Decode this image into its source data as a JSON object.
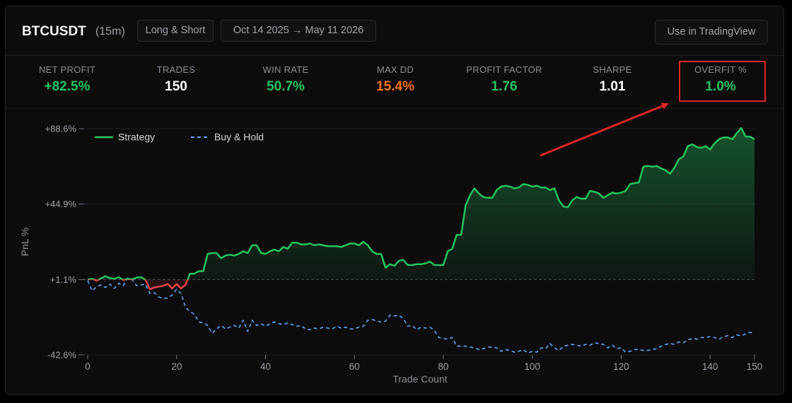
{
  "header": {
    "symbol": "BTCUSDT",
    "timeframe": "(15m)",
    "mode": "Long & Short",
    "date_range": "Oct 14 2025 → May 11 2026",
    "tradingview_button": "Use in TradingView"
  },
  "stats": [
    {
      "label": "NET PROFIT",
      "value": "+82.5%",
      "color": "#22c55e"
    },
    {
      "label": "TRADES",
      "value": "150",
      "color": "#ffffff"
    },
    {
      "label": "WIN RATE",
      "value": "50.7%",
      "color": "#22c55e"
    },
    {
      "label": "MAX DD",
      "value": "15.4%",
      "color": "#f97316"
    },
    {
      "label": "PROFIT FACTOR",
      "value": "1.76",
      "color": "#22c55e"
    },
    {
      "label": "SHARPE",
      "value": "1.01",
      "color": "#ffffff"
    },
    {
      "label": "OVERFIT %",
      "value": "1.0%",
      "color": "#22c55e"
    }
  ],
  "chart_data": {
    "type": "line",
    "xlabel": "Trade Count",
    "ylabel": "PnL %",
    "xlim": [
      0,
      152
    ],
    "ylim": [
      -43.5,
      89.5
    ],
    "xticks": [
      0,
      20,
      40,
      60,
      80,
      100,
      120,
      140,
      150
    ],
    "yticks": [
      {
        "value": 88.6,
        "label": "+88.6%"
      },
      {
        "value": 44.9,
        "label": "+44.9%"
      },
      {
        "value": 1.1,
        "label": "+1.1%"
      },
      {
        "value": -42.6,
        "label": "-42.6%"
      }
    ],
    "legend_position": "top-left",
    "baseline": 1.1,
    "series": [
      {
        "name": "Strategy",
        "color": "#22c55e",
        "below_baseline_color": "#ef4444",
        "style": "solid",
        "points": [
          [
            0,
            1.1
          ],
          [
            1,
            1.5
          ],
          [
            2,
            0.5
          ],
          [
            3,
            1.8
          ],
          [
            4,
            3.0
          ],
          [
            5,
            2.0
          ],
          [
            6,
            1.5
          ],
          [
            7,
            2.5
          ],
          [
            8,
            0.8
          ],
          [
            9,
            1.5
          ],
          [
            10,
            1.2
          ],
          [
            11,
            2.2
          ],
          [
            12,
            2.5
          ],
          [
            13,
            1.0
          ],
          [
            14,
            -4.5
          ],
          [
            15,
            -3.5
          ],
          [
            16,
            -3.0
          ],
          [
            17,
            -2.5
          ],
          [
            18,
            -1.5
          ],
          [
            19,
            -4.0
          ],
          [
            20,
            -1.5
          ],
          [
            21,
            -4.0
          ],
          [
            22,
            -2.0
          ],
          [
            23,
            4.5
          ],
          [
            24,
            4.5
          ],
          [
            25,
            6.0
          ],
          [
            26,
            6.0
          ],
          [
            27,
            16.0
          ],
          [
            28,
            16.5
          ],
          [
            29,
            16.5
          ],
          [
            30,
            13.5
          ],
          [
            31,
            15.0
          ],
          [
            32,
            15.5
          ],
          [
            33,
            15.0
          ],
          [
            34,
            16.0
          ],
          [
            35,
            17.5
          ],
          [
            36,
            16.5
          ],
          [
            37,
            21.0
          ],
          [
            38,
            21.0
          ],
          [
            39,
            16.5
          ],
          [
            40,
            16.0
          ],
          [
            41,
            17.5
          ],
          [
            42,
            18.5
          ],
          [
            43,
            17.5
          ],
          [
            44,
            20.0
          ],
          [
            45,
            19.0
          ],
          [
            46,
            22.5
          ],
          [
            47,
            22.5
          ],
          [
            48,
            21.5
          ],
          [
            49,
            21.5
          ],
          [
            50,
            22.0
          ],
          [
            51,
            21.0
          ],
          [
            52,
            21.5
          ],
          [
            53,
            21.0
          ],
          [
            54,
            20.5
          ],
          [
            55,
            20.5
          ],
          [
            56,
            20.5
          ],
          [
            57,
            20.0
          ],
          [
            58,
            21.0
          ],
          [
            59,
            22.0
          ],
          [
            60,
            22.0
          ],
          [
            61,
            21.0
          ],
          [
            62,
            23.0
          ],
          [
            63,
            21.0
          ],
          [
            64,
            17.5
          ],
          [
            65,
            16.0
          ],
          [
            66,
            16.0
          ],
          [
            67,
            8.0
          ],
          [
            68,
            10.0
          ],
          [
            69,
            9.0
          ],
          [
            70,
            12.0
          ],
          [
            71,
            12.5
          ],
          [
            72,
            9.5
          ],
          [
            73,
            9.5
          ],
          [
            74,
            10.0
          ],
          [
            75,
            10.0
          ],
          [
            76,
            10.5
          ],
          [
            77,
            11.5
          ],
          [
            78,
            9.5
          ],
          [
            79,
            9.5
          ],
          [
            80,
            9.5
          ],
          [
            81,
            17.5
          ],
          [
            82,
            19.0
          ],
          [
            83,
            27.0
          ],
          [
            84,
            27.0
          ],
          [
            85,
            44.0
          ],
          [
            86,
            50.0
          ],
          [
            87,
            54.0
          ],
          [
            88,
            51.0
          ],
          [
            89,
            49.0
          ],
          [
            90,
            48.5
          ],
          [
            91,
            48.5
          ],
          [
            92,
            53.0
          ],
          [
            93,
            55.0
          ],
          [
            94,
            55.5
          ],
          [
            95,
            55.0
          ],
          [
            96,
            54.0
          ],
          [
            97,
            54.5
          ],
          [
            98,
            56.5
          ],
          [
            99,
            56.0
          ],
          [
            100,
            55.0
          ],
          [
            101,
            55.5
          ],
          [
            102,
            54.5
          ],
          [
            103,
            54.5
          ],
          [
            104,
            53.0
          ],
          [
            105,
            54.0
          ],
          [
            106,
            47.0
          ],
          [
            107,
            43.5
          ],
          [
            108,
            43.0
          ],
          [
            109,
            47.0
          ],
          [
            110,
            49.0
          ],
          [
            111,
            48.0
          ],
          [
            112,
            48.0
          ],
          [
            113,
            52.5
          ],
          [
            114,
            52.0
          ],
          [
            115,
            51.0
          ],
          [
            116,
            48.5
          ],
          [
            117,
            50.0
          ],
          [
            118,
            51.5
          ],
          [
            119,
            51.0
          ],
          [
            120,
            51.5
          ],
          [
            121,
            52.5
          ],
          [
            122,
            56.5
          ],
          [
            123,
            57.0
          ],
          [
            124,
            57.5
          ],
          [
            125,
            66.5
          ],
          [
            126,
            67.0
          ],
          [
            127,
            66.5
          ],
          [
            128,
            67.0
          ],
          [
            129,
            65.5
          ],
          [
            130,
            64.5
          ],
          [
            131,
            62.5
          ],
          [
            132,
            66.0
          ],
          [
            133,
            71.0
          ],
          [
            134,
            72.5
          ],
          [
            135,
            78.5
          ],
          [
            136,
            79.5
          ],
          [
            137,
            78.0
          ],
          [
            138,
            77.5
          ],
          [
            139,
            78.5
          ],
          [
            140,
            76.5
          ],
          [
            141,
            80.0
          ],
          [
            142,
            82.5
          ],
          [
            143,
            83.5
          ],
          [
            144,
            83.5
          ],
          [
            145,
            82.5
          ],
          [
            146,
            86.0
          ],
          [
            147,
            89.0
          ],
          [
            148,
            84.0
          ],
          [
            149,
            84.0
          ],
          [
            150,
            82.5
          ]
        ]
      },
      {
        "name": "Buy & Hold",
        "color": "#60a5fa",
        "style": "dashed",
        "points": [
          [
            0,
            0.5
          ],
          [
            1,
            -5.5
          ],
          [
            2,
            -3.0
          ],
          [
            3,
            -2.0
          ],
          [
            4,
            -3.5
          ],
          [
            5,
            -1.5
          ],
          [
            6,
            -4.0
          ],
          [
            7,
            -1.0
          ],
          [
            8,
            -2.5
          ],
          [
            9,
            2.0
          ],
          [
            10,
            1.0
          ],
          [
            11,
            -2.5
          ],
          [
            12,
            -2.0
          ],
          [
            13,
            -1.5
          ],
          [
            14,
            -7.0
          ],
          [
            15,
            -6.5
          ],
          [
            16,
            -9.0
          ],
          [
            17,
            -10.0
          ],
          [
            18,
            -9.5
          ],
          [
            19,
            -8.0
          ],
          [
            20,
            -4.5
          ],
          [
            21,
            -7.0
          ],
          [
            22,
            -15.0
          ],
          [
            23,
            -17.5
          ],
          [
            24,
            -19.0
          ],
          [
            25,
            -23.5
          ],
          [
            26,
            -24.0
          ],
          [
            27,
            -25.5
          ],
          [
            28,
            -30.0
          ],
          [
            29,
            -27.5
          ],
          [
            30,
            -25.5
          ],
          [
            31,
            -27.5
          ],
          [
            32,
            -26.5
          ],
          [
            33,
            -25.5
          ],
          [
            34,
            -27.0
          ],
          [
            35,
            -22.5
          ],
          [
            36,
            -29.0
          ],
          [
            37,
            -22.5
          ],
          [
            38,
            -25.5
          ],
          [
            39,
            -24.5
          ],
          [
            40,
            -26.0
          ],
          [
            41,
            -24.5
          ],
          [
            42,
            -23.5
          ],
          [
            43,
            -24.5
          ],
          [
            44,
            -25.0
          ],
          [
            45,
            -24.0
          ],
          [
            46,
            -25.0
          ],
          [
            47,
            -26.0
          ],
          [
            48,
            -25.5
          ],
          [
            49,
            -27.5
          ],
          [
            50,
            -28.0
          ],
          [
            51,
            -27.0
          ],
          [
            52,
            -27.5
          ],
          [
            53,
            -26.5
          ],
          [
            54,
            -27.0
          ],
          [
            55,
            -27.5
          ],
          [
            56,
            -26.0
          ],
          [
            57,
            -27.0
          ],
          [
            58,
            -26.5
          ],
          [
            59,
            -27.5
          ],
          [
            60,
            -27.5
          ],
          [
            61,
            -26.5
          ],
          [
            62,
            -26.0
          ],
          [
            63,
            -22.5
          ],
          [
            64,
            -22.0
          ],
          [
            65,
            -23.0
          ],
          [
            66,
            -23.5
          ],
          [
            67,
            -23.0
          ],
          [
            68,
            -19.5
          ],
          [
            69,
            -20.0
          ],
          [
            70,
            -19.5
          ],
          [
            71,
            -21.5
          ],
          [
            72,
            -26.0
          ],
          [
            73,
            -25.5
          ],
          [
            74,
            -28.0
          ],
          [
            75,
            -26.5
          ],
          [
            76,
            -27.0
          ],
          [
            77,
            -26.5
          ],
          [
            78,
            -28.5
          ],
          [
            79,
            -32.5
          ],
          [
            80,
            -33.0
          ],
          [
            81,
            -33.5
          ],
          [
            82,
            -32.5
          ],
          [
            83,
            -37.5
          ],
          [
            84,
            -37.5
          ],
          [
            85,
            -37.5
          ],
          [
            86,
            -38.0
          ],
          [
            87,
            -38.5
          ],
          [
            88,
            -39.5
          ],
          [
            89,
            -39.0
          ],
          [
            90,
            -38.0
          ],
          [
            91,
            -38.0
          ],
          [
            92,
            -38.5
          ],
          [
            93,
            -40.5
          ],
          [
            94,
            -39.5
          ],
          [
            95,
            -40.0
          ],
          [
            96,
            -41.0
          ],
          [
            97,
            -40.5
          ],
          [
            98,
            -39.5
          ],
          [
            99,
            -41.5
          ],
          [
            100,
            -40.5
          ],
          [
            101,
            -41.0
          ],
          [
            102,
            -38.5
          ],
          [
            103,
            -39.0
          ],
          [
            104,
            -36.0
          ],
          [
            105,
            -38.5
          ],
          [
            106,
            -40.0
          ],
          [
            107,
            -37.5
          ],
          [
            108,
            -37.0
          ],
          [
            109,
            -36.5
          ],
          [
            110,
            -37.0
          ],
          [
            111,
            -37.5
          ],
          [
            112,
            -36.5
          ],
          [
            113,
            -37.0
          ],
          [
            114,
            -35.5
          ],
          [
            115,
            -36.0
          ],
          [
            116,
            -36.5
          ],
          [
            117,
            -38.5
          ],
          [
            118,
            -37.0
          ],
          [
            119,
            -39.0
          ],
          [
            120,
            -38.5
          ],
          [
            121,
            -41.0
          ],
          [
            122,
            -40.5
          ],
          [
            123,
            -39.5
          ],
          [
            124,
            -39.5
          ],
          [
            125,
            -40.0
          ],
          [
            126,
            -40.0
          ],
          [
            127,
            -39.5
          ],
          [
            128,
            -39.0
          ],
          [
            129,
            -37.5
          ],
          [
            130,
            -36.5
          ],
          [
            131,
            -36.0
          ],
          [
            132,
            -36.5
          ],
          [
            133,
            -35.0
          ],
          [
            134,
            -35.5
          ],
          [
            135,
            -34.0
          ],
          [
            136,
            -33.0
          ],
          [
            137,
            -33.5
          ],
          [
            138,
            -32.5
          ],
          [
            139,
            -32.5
          ],
          [
            140,
            -32.0
          ],
          [
            141,
            -32.5
          ],
          [
            142,
            -33.5
          ],
          [
            143,
            -32.0
          ],
          [
            144,
            -31.5
          ],
          [
            145,
            -32.5
          ],
          [
            146,
            -31.0
          ],
          [
            147,
            -31.5
          ],
          [
            148,
            -30.5
          ],
          [
            149,
            -29.5
          ],
          [
            150,
            -30.0
          ]
        ]
      }
    ]
  },
  "annotation": {
    "color": "#dc2626"
  }
}
